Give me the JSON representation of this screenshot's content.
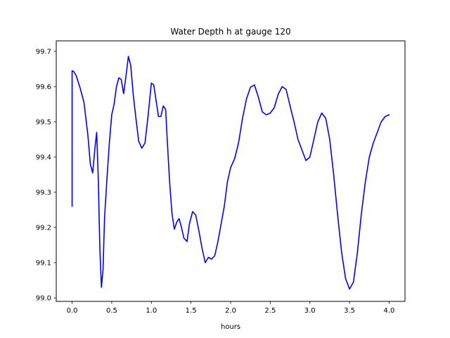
{
  "chart_data": {
    "type": "line",
    "title": "Water Depth h at gauge 120",
    "xlabel": "hours",
    "ylabel": "",
    "xlim": [
      -0.2,
      4.2
    ],
    "ylim": [
      98.99,
      99.73
    ],
    "grid": false,
    "x_ticks": [
      0.0,
      0.5,
      1.0,
      1.5,
      2.0,
      2.5,
      3.0,
      3.5,
      4.0
    ],
    "x_tick_labels": [
      "0.0",
      "0.5",
      "1.0",
      "1.5",
      "2.0",
      "2.5",
      "3.0",
      "3.5",
      "4.0"
    ],
    "y_ticks": [
      99.0,
      99.1,
      99.2,
      99.3,
      99.4,
      99.5,
      99.6,
      99.7
    ],
    "y_tick_labels": [
      "99.0",
      "99.1",
      "99.2",
      "99.3",
      "99.4",
      "99.5",
      "99.6",
      "99.7"
    ],
    "series": [
      {
        "color": "#0000ff",
        "x": [
          0.0,
          0.0,
          0.02,
          0.05,
          0.1,
          0.15,
          0.2,
          0.23,
          0.26,
          0.29,
          0.31,
          0.33,
          0.35,
          0.37,
          0.39,
          0.41,
          0.44,
          0.47,
          0.5,
          0.53,
          0.56,
          0.59,
          0.62,
          0.65,
          0.68,
          0.71,
          0.74,
          0.77,
          0.8,
          0.84,
          0.88,
          0.92,
          0.96,
          1.0,
          1.03,
          1.06,
          1.09,
          1.12,
          1.15,
          1.18,
          1.2,
          1.23,
          1.26,
          1.29,
          1.32,
          1.35,
          1.38,
          1.41,
          1.45,
          1.48,
          1.52,
          1.56,
          1.6,
          1.64,
          1.68,
          1.72,
          1.76,
          1.8,
          1.84,
          1.88,
          1.92,
          1.96,
          2.0,
          2.05,
          2.1,
          2.15,
          2.2,
          2.25,
          2.3,
          2.35,
          2.4,
          2.45,
          2.5,
          2.55,
          2.6,
          2.65,
          2.7,
          2.75,
          2.8,
          2.85,
          2.9,
          2.95,
          3.0,
          3.05,
          3.1,
          3.15,
          3.2,
          3.25,
          3.3,
          3.35,
          3.4,
          3.45,
          3.5,
          3.55,
          3.6,
          3.65,
          3.7,
          3.75,
          3.8,
          3.85,
          3.9,
          3.95,
          4.0
        ],
        "y": [
          99.26,
          99.645,
          99.643,
          99.632,
          99.597,
          99.555,
          99.46,
          99.38,
          99.355,
          99.43,
          99.47,
          99.34,
          99.14,
          99.03,
          99.08,
          99.23,
          99.34,
          99.44,
          99.52,
          99.55,
          99.6,
          99.625,
          99.62,
          99.58,
          99.63,
          99.686,
          99.66,
          99.58,
          99.52,
          99.445,
          99.425,
          99.44,
          99.52,
          99.61,
          99.605,
          99.56,
          99.515,
          99.515,
          99.545,
          99.535,
          99.45,
          99.33,
          99.24,
          99.195,
          99.215,
          99.225,
          99.2,
          99.17,
          99.16,
          99.21,
          99.245,
          99.235,
          99.19,
          99.14,
          99.1,
          99.115,
          99.11,
          99.12,
          99.16,
          99.21,
          99.26,
          99.33,
          99.37,
          99.395,
          99.44,
          99.51,
          99.565,
          99.598,
          99.605,
          99.57,
          99.528,
          99.52,
          99.525,
          99.54,
          99.578,
          99.6,
          99.592,
          99.545,
          99.5,
          99.45,
          99.42,
          99.39,
          99.4,
          99.45,
          99.5,
          99.525,
          99.51,
          99.45,
          99.35,
          99.235,
          99.13,
          99.055,
          99.025,
          99.045,
          99.13,
          99.24,
          99.33,
          99.4,
          99.44,
          99.47,
          99.5,
          99.515,
          99.52
        ]
      }
    ]
  }
}
